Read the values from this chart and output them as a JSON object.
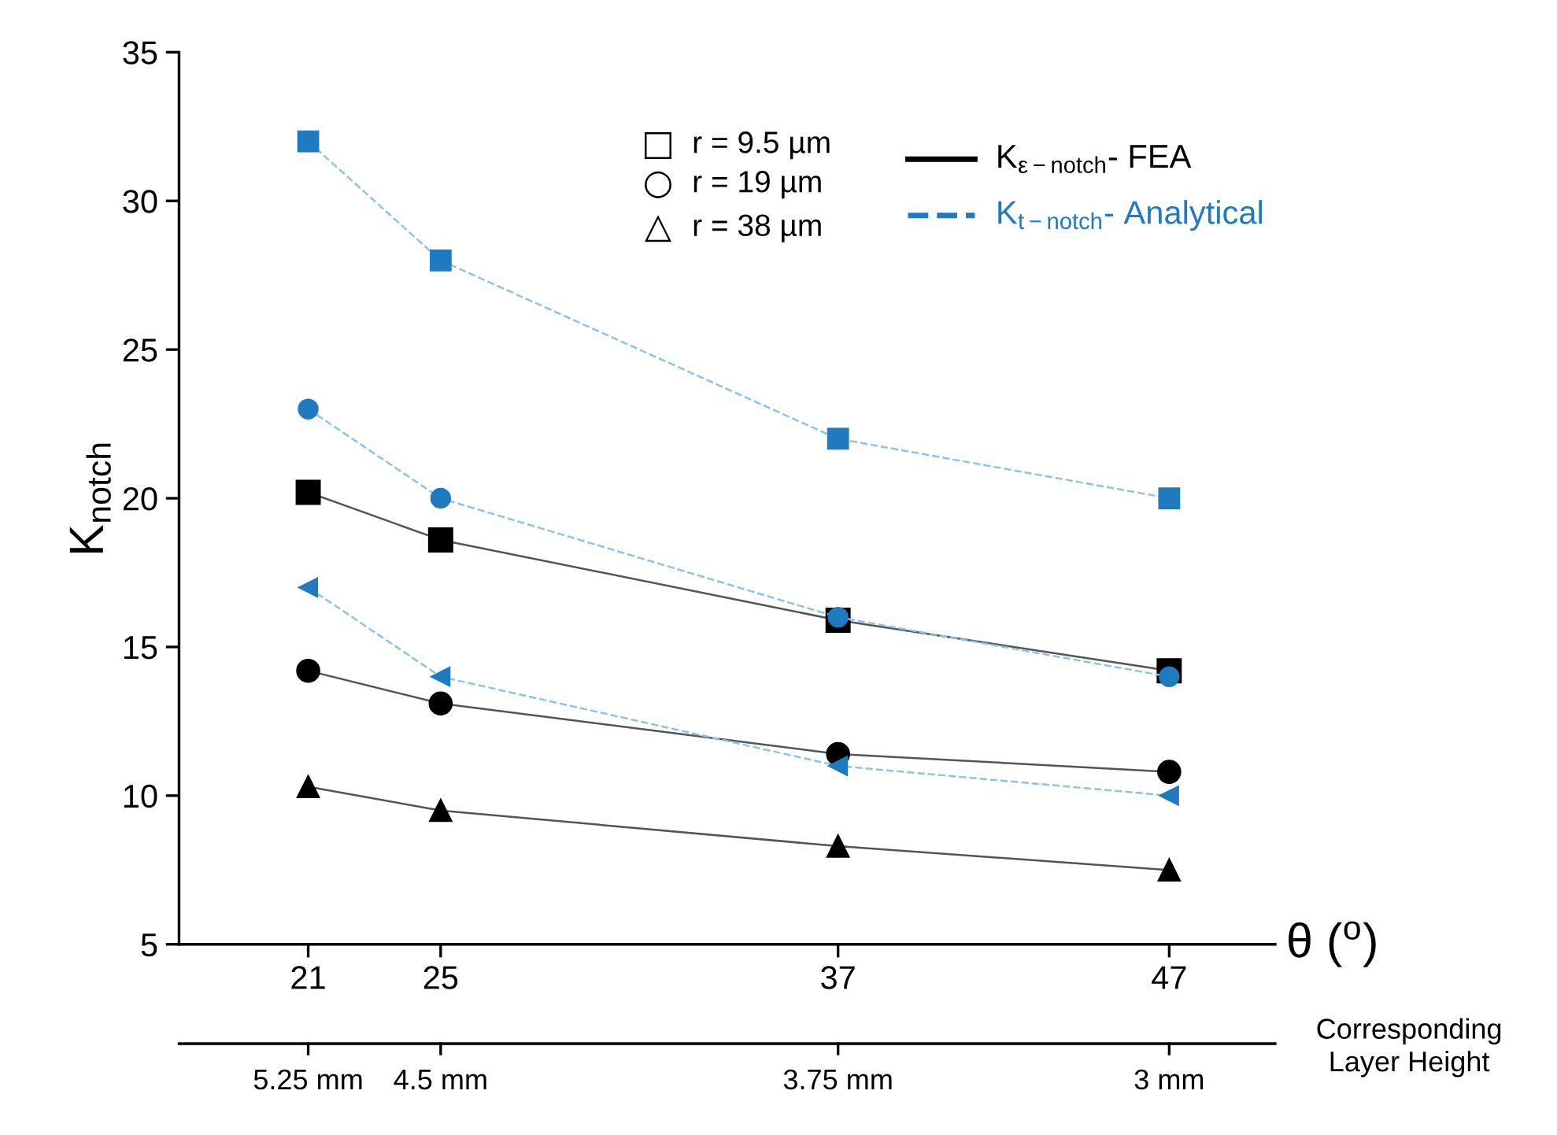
{
  "chart_data": {
    "type": "line",
    "x": [
      21,
      25,
      37,
      47
    ],
    "xlabel": "θ ($^{o}$)",
    "ylabel": "K$_{notch}$",
    "xlim": [
      17.1,
      50.2
    ],
    "xticks": [
      21,
      25,
      37,
      47
    ],
    "ylim": [
      5,
      35
    ],
    "yticks": [
      5,
      10,
      15,
      20,
      25,
      30,
      35
    ],
    "grid": false,
    "annotations": [
      "r = 9.5 µm",
      "r = 19 µm",
      "r = 38 µm",
      "K$_{ε−notch}$- FEA",
      "K$_{t−notch}$- Analytical",
      "Corresponding\nLayer Height",
      "5.25 mm",
      "4.5 mm",
      "3.75 mm",
      "3 mm",
      "□",
      "○",
      "△"
    ],
    "series": [
      {
        "color": "#000000",
        "marker": "square",
        "line_style": "solid",
        "values": [
          20.2,
          18.6,
          15.9,
          14.2
        ]
      },
      {
        "color": "#000000",
        "marker": "circle",
        "line_style": "solid",
        "values": [
          14.2,
          13.1,
          11.4,
          10.8
        ]
      },
      {
        "color": "#000000",
        "marker": "triangle",
        "line_style": "solid",
        "values": [
          10.3,
          9.5,
          8.3,
          7.5
        ]
      },
      {
        "color": "#1f7abf",
        "marker": "square",
        "line_style": "dashed",
        "values": [
          32,
          28,
          22,
          20
        ]
      },
      {
        "color": "#1f7abf",
        "marker": "circle",
        "line_style": "dashed",
        "values": [
          23,
          20,
          16,
          14
        ]
      },
      {
        "color": "#1f7abf",
        "marker": "triangle-left",
        "line_style": "dashed",
        "values": [
          17,
          14,
          11,
          10
        ]
      }
    ]
  }
}
